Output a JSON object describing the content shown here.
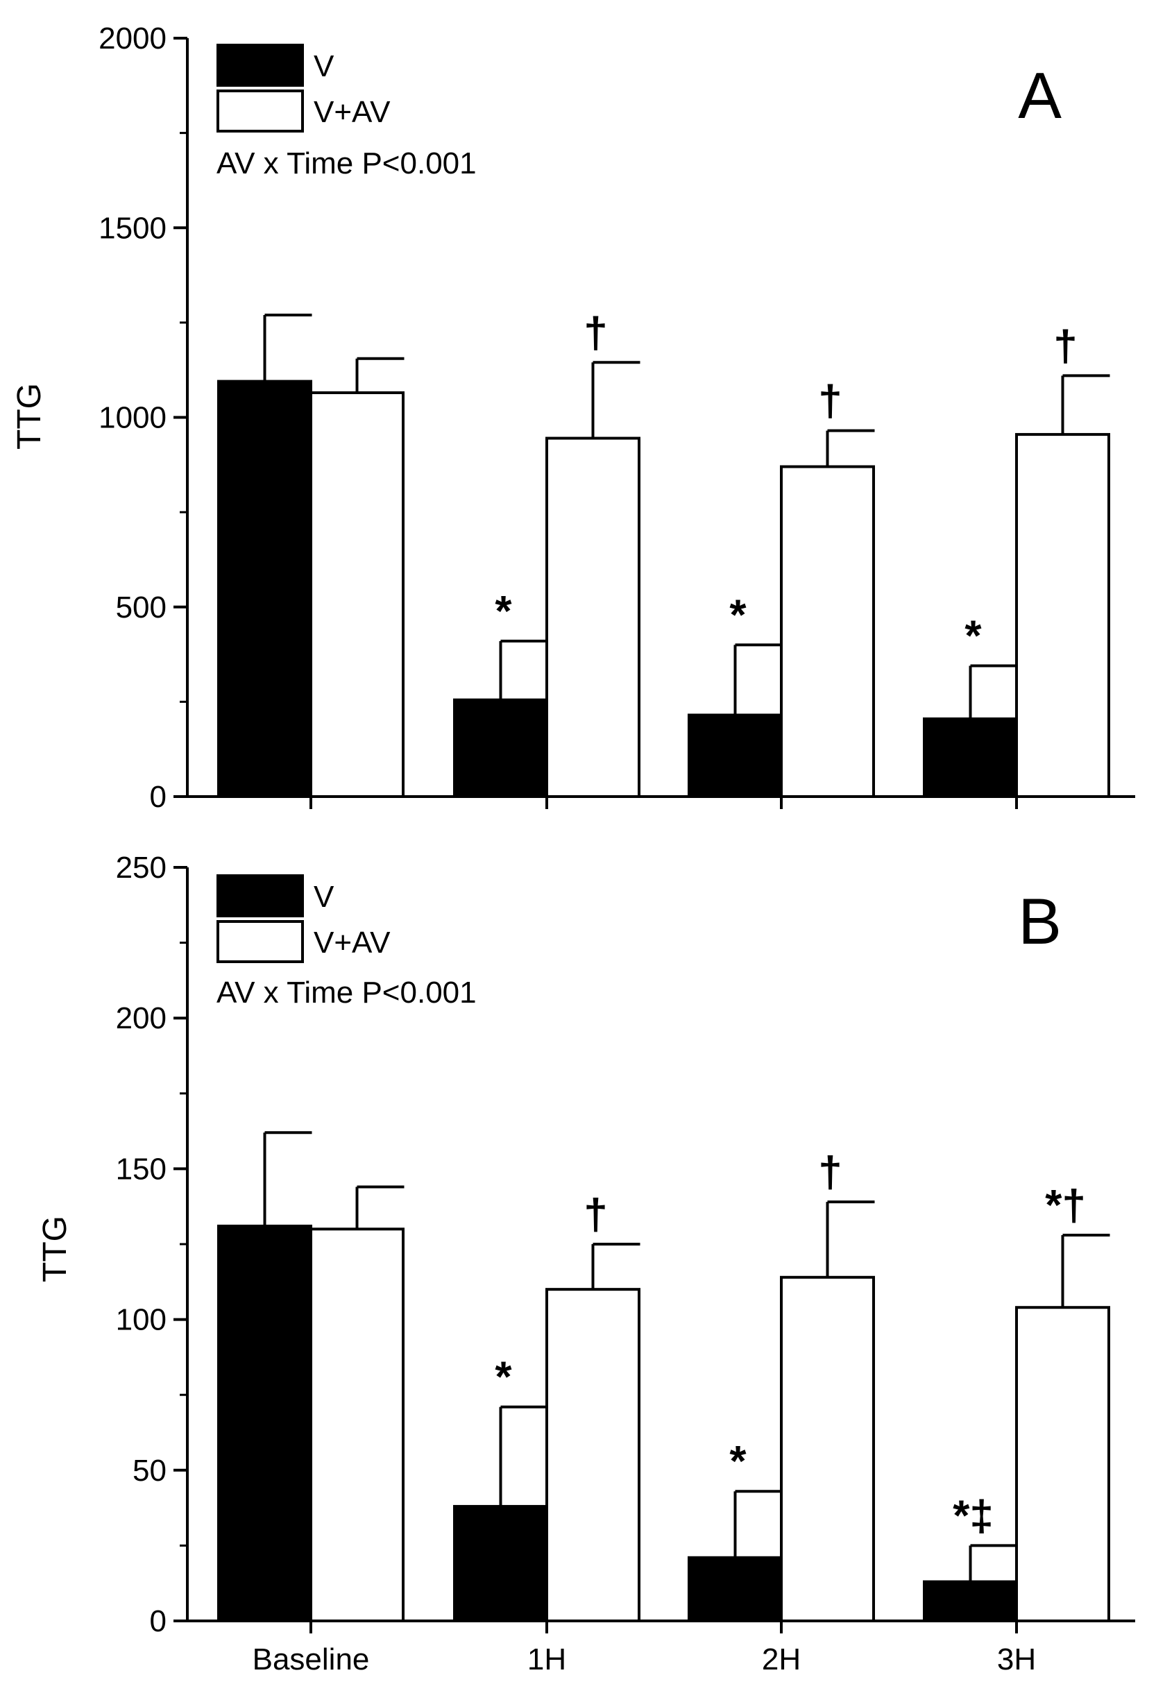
{
  "chart_data": [
    {
      "type": "bar",
      "panel": "A",
      "ylabel": "TTG",
      "xlabel": "",
      "ylim": [
        0,
        2000
      ],
      "yticks": [
        0,
        500,
        1000,
        1500,
        2000
      ],
      "categories": [
        "Baseline",
        "1H",
        "2H",
        "3H"
      ],
      "series": [
        {
          "name": "V",
          "values": [
            1095,
            255,
            215,
            205
          ],
          "errors": [
            175,
            155,
            185,
            140
          ],
          "marks": [
            "",
            "*",
            "*",
            "*"
          ]
        },
        {
          "name": "V+AV",
          "values": [
            1065,
            945,
            870,
            955
          ],
          "errors": [
            90,
            200,
            95,
            155
          ],
          "marks": [
            "",
            "†",
            "†",
            "†"
          ]
        }
      ],
      "legend": [
        "V",
        "V+AV"
      ],
      "legend_position": "top-left",
      "annotation": "AV x Time P<0.001",
      "show_x_tick_labels": false
    },
    {
      "type": "bar",
      "panel": "B",
      "ylabel": "TTG",
      "xlabel": "",
      "ylim": [
        0,
        250
      ],
      "yticks": [
        0,
        50,
        100,
        150,
        200,
        250
      ],
      "categories": [
        "Baseline",
        "1H",
        "2H",
        "3H"
      ],
      "series": [
        {
          "name": "V",
          "values": [
            131,
            38,
            21,
            13
          ],
          "errors": [
            31,
            33,
            22,
            12
          ],
          "marks": [
            "",
            "*",
            "*",
            "*‡"
          ]
        },
        {
          "name": "V+AV",
          "values": [
            130,
            110,
            114,
            104
          ],
          "errors": [
            14,
            15,
            25,
            24
          ],
          "marks": [
            "",
            "†",
            "†",
            "*†"
          ]
        }
      ],
      "legend": [
        "V",
        "V+AV"
      ],
      "legend_position": "top-left",
      "annotation": "AV x Time P<0.001",
      "show_x_tick_labels": true
    }
  ],
  "colors": {
    "V": "#000000",
    "V+AV": "#ffffff",
    "axis": "#000000"
  }
}
